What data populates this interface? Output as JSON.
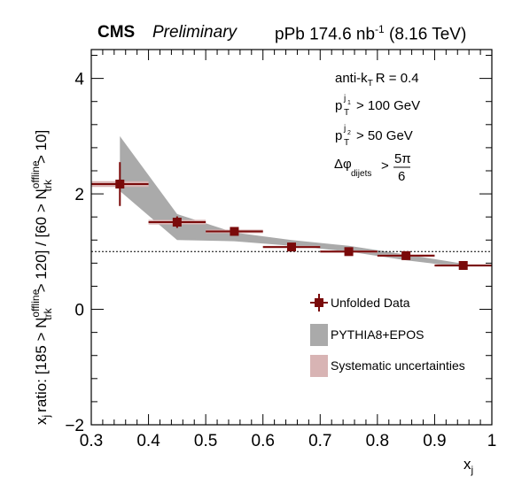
{
  "header": {
    "experiment": "CMS",
    "status": "Preliminary",
    "dataset_prefix": "pPb 174.6 nb",
    "dataset_sup": "-1",
    "dataset_suffix": "(8.16 TeV)"
  },
  "annotations": {
    "algo_main": "anti-k",
    "algo_sub": "T",
    "algo_rest": "R = 0.4",
    "cut1_main": "p",
    "cut1_sup": "j",
    "cut1_supsub": "1",
    "cut1_sub": "T",
    "cut1_rest": "> 100 GeV",
    "cut2_main": "p",
    "cut2_sup": "j",
    "cut2_supsub": "2",
    "cut2_sub": "T",
    "cut2_rest": "> 50 GeV",
    "dphi_main": "Δφ",
    "dphi_sub": "dijets",
    "dphi_gt": ">",
    "dphi_num": "5π",
    "dphi_den": "6"
  },
  "axes": {
    "xlabel_main": "x",
    "xlabel_sub": "j",
    "ylabel_p1": "x",
    "ylabel_p1_sub": "j",
    "ylabel_p2": "ratio: [185 > N",
    "ylabel_sup1": "offline",
    "ylabel_sub1": "trk",
    "ylabel_p3": "> 120] / [60 > N",
    "ylabel_sup2": "offline",
    "ylabel_sub2": "trk",
    "ylabel_p4": "> 10]"
  },
  "legend": {
    "data": "Unfolded Data",
    "mc": "PYTHIA8+EPOS",
    "syst": "Systematic uncertainties"
  },
  "colors": {
    "data": "#7a0a0a",
    "mc_band": "#aaaaaa",
    "syst_box": "#d8b4b4"
  },
  "chart_data": {
    "type": "scatter",
    "xlim": [
      0.3,
      1.0
    ],
    "ylim": [
      -2,
      4.5
    ],
    "xticks": [
      "0.3",
      "0.4",
      "0.5",
      "0.6",
      "0.7",
      "0.8",
      "0.9",
      "1"
    ],
    "yticks": [
      "-2",
      "0",
      "2",
      "4"
    ],
    "reference_line": 1.0,
    "series": [
      {
        "name": "Unfolded Data",
        "x": [
          0.35,
          0.45,
          0.55,
          0.65,
          0.75,
          0.85,
          0.95
        ],
        "y": [
          2.17,
          1.51,
          1.35,
          1.08,
          1.0,
          0.93,
          0.76
        ],
        "xerr": [
          0.05,
          0.05,
          0.05,
          0.05,
          0.05,
          0.05,
          0.05
        ],
        "yerr": [
          0.38,
          0.1,
          0.04,
          0.03,
          0.03,
          0.03,
          0.02
        ],
        "syst": [
          0.05,
          0.04,
          0.03,
          0.02,
          0.02,
          0.02,
          0.02
        ]
      },
      {
        "name": "PYTHIA8+EPOS",
        "x": [
          0.35,
          0.45,
          0.55,
          0.65,
          0.75,
          0.85,
          0.95
        ],
        "ylow": [
          2.05,
          1.2,
          1.18,
          1.1,
          1.0,
          0.85,
          0.73
        ],
        "yhigh": [
          3.0,
          1.65,
          1.33,
          1.2,
          1.1,
          0.95,
          0.79
        ]
      }
    ]
  }
}
